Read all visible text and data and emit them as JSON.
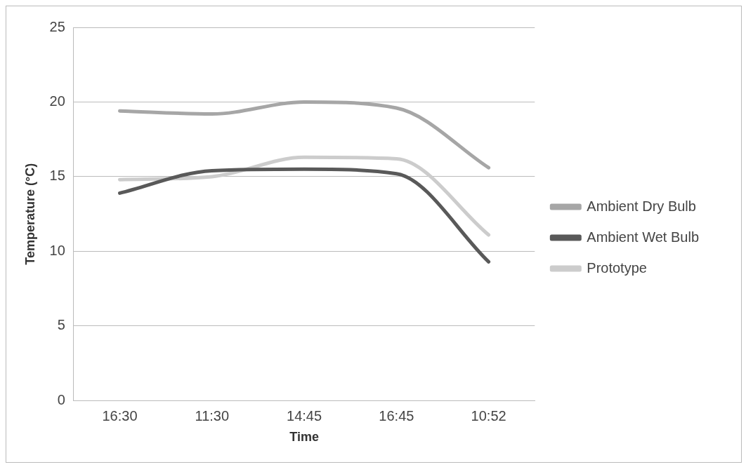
{
  "chart_data": {
    "type": "line",
    "xlabel": "Time",
    "ylabel": "Temperature (°C)",
    "categories": [
      "16:30",
      "11:30",
      "14:45",
      "16:45",
      "10:52"
    ],
    "series": [
      {
        "name": "Ambient Dry Bulb",
        "color": "#a6a6a6",
        "values": [
          19.4,
          19.2,
          20.0,
          19.6,
          15.6
        ]
      },
      {
        "name": "Ambient Wet Bulb",
        "color": "#595959",
        "values": [
          13.9,
          15.4,
          15.5,
          15.2,
          9.3
        ]
      },
      {
        "name": "Prototype",
        "color": "#cccccc",
        "values": [
          14.8,
          15.0,
          16.3,
          16.2,
          11.1
        ]
      }
    ],
    "ylim": [
      0,
      25
    ],
    "yticks": [
      0,
      5,
      10,
      15,
      20,
      25
    ],
    "grid": "y",
    "legend": "right",
    "marker": "none",
    "line_style": "solid"
  }
}
